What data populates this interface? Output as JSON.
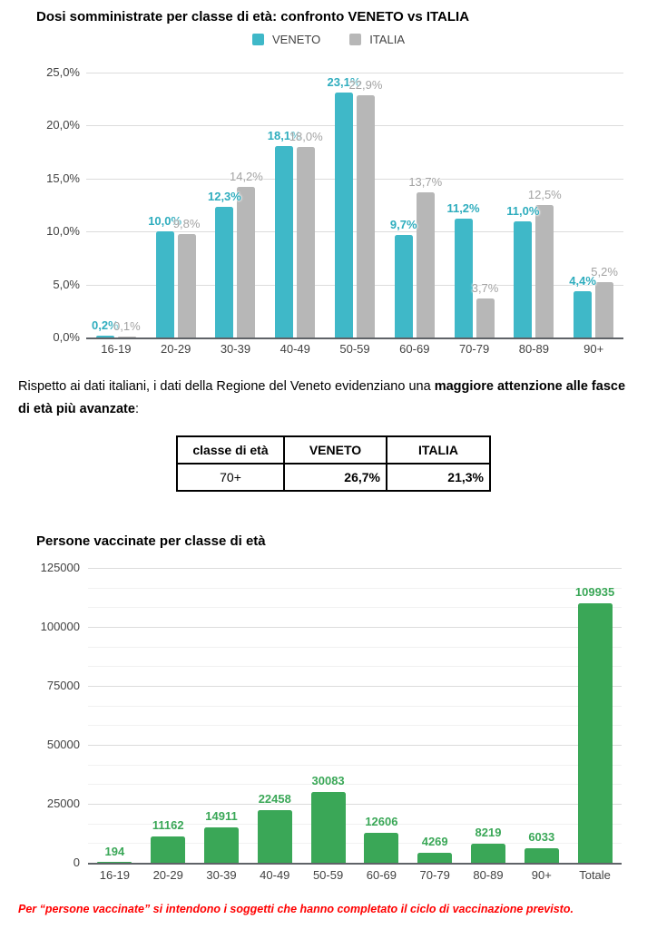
{
  "colors": {
    "veneto": "#3fb8c8",
    "italia": "#b7b7b7",
    "veneto_label": "#2fadbe",
    "italia_label": "#a3a3a3",
    "green": "#3aa757",
    "red": "#ff0000"
  },
  "chart_data": [
    {
      "type": "bar",
      "title": "Dosi somministrate per classe di età: confronto VENETO vs ITALIA",
      "categories": [
        "16-19",
        "20-29",
        "30-39",
        "40-49",
        "50-59",
        "60-69",
        "70-79",
        "80-89",
        "90+"
      ],
      "series": [
        {
          "name": "VENETO",
          "color": "#3fb8c8",
          "values": [
            0.2,
            10.0,
            12.3,
            18.1,
            23.1,
            9.7,
            11.2,
            11.0,
            4.4
          ],
          "labels": [
            "0,2%",
            "10,0%",
            "12,3%",
            "18,1%",
            "23,1%",
            "9,7%",
            "11,2%",
            "11,0%",
            "4,4%"
          ]
        },
        {
          "name": "ITALIA",
          "color": "#b7b7b7",
          "values": [
            0.1,
            9.8,
            14.2,
            18.0,
            22.9,
            13.7,
            3.7,
            12.5,
            5.2
          ],
          "labels": [
            "0,1%",
            "9,8%",
            "14,2%",
            "18,0%",
            "22,9%",
            "13,7%",
            "3,7%",
            "12,5%",
            "5,2%"
          ]
        }
      ],
      "ylim": [
        0,
        25
      ],
      "y_ticks": [
        "25,0%",
        "20,0%",
        "15,0%",
        "10,0%",
        "5,0%",
        "0,0%"
      ],
      "grid": true,
      "legend_position": "top"
    },
    {
      "type": "bar",
      "title": "Persone vaccinate per classe di età",
      "categories": [
        "16-19",
        "20-29",
        "30-39",
        "40-49",
        "50-59",
        "60-69",
        "70-79",
        "80-89",
        "90+",
        "Totale"
      ],
      "values": [
        194,
        11162,
        14911,
        22458,
        30083,
        12606,
        4269,
        8219,
        6033,
        109935
      ],
      "labels": [
        "194",
        "11162",
        "14911",
        "22458",
        "30083",
        "12606",
        "4269",
        "8219",
        "6033",
        "109935"
      ],
      "ylim": [
        0,
        125000
      ],
      "y_ticks": [
        "125000",
        "100000",
        "75000",
        "50000",
        "25000",
        "0"
      ],
      "grid": true,
      "legend_position": "none"
    }
  ],
  "paragraph": {
    "line1_normal": "Rispetto ai dati italiani, i dati della Regione del Veneto evidenziano una ",
    "line1_bold": "maggiore attenzione alle fasce",
    "line2_bold": "di età più avanzate",
    "line2_suffix": ":"
  },
  "table": {
    "headers": [
      "classe di età",
      "VENETO",
      "ITALIA"
    ],
    "rows": [
      [
        "70+",
        "26,7%",
        "21,3%"
      ]
    ]
  },
  "footer": {
    "note": "Per “persone vaccinate” si intendono i soggetti che hanno completato il ciclo di vaccinazione previsto."
  }
}
